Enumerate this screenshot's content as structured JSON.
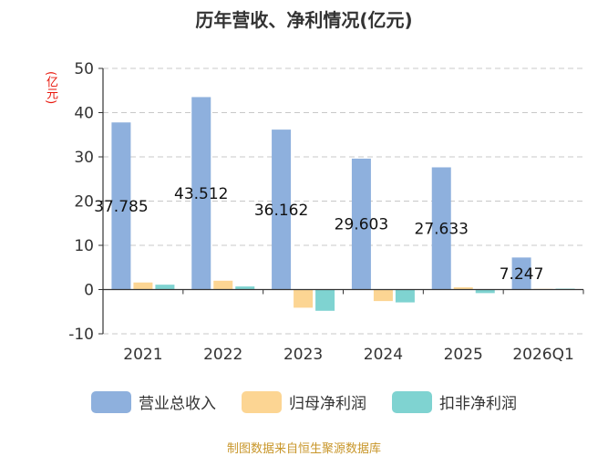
{
  "chart_data": {
    "type": "bar",
    "title": "历年营收、净利情况(亿元)",
    "yunit": "(亿元)",
    "categories": [
      "2021",
      "2022",
      "2023",
      "2024",
      "2025",
      "2026Q1"
    ],
    "ylim": [
      -10,
      50
    ],
    "yticks": [
      -10,
      0,
      10,
      20,
      30,
      40,
      50
    ],
    "grid": true,
    "legend_position": "bottom",
    "series": [
      {
        "name": "营业总收入",
        "color": "#8eb0dd",
        "values": [
          37.785,
          43.512,
          36.162,
          29.603,
          27.633,
          7.247
        ],
        "data_labels": [
          "37.785",
          "43.512",
          "36.162",
          "29.603",
          "27.633",
          "7.247"
        ]
      },
      {
        "name": "归母净利润",
        "color": "#fcd593",
        "values": [
          1.6,
          2.0,
          -4.1,
          -2.6,
          0.5,
          0.15
        ]
      },
      {
        "name": "扣非净利润",
        "color": "#7fd3d1",
        "values": [
          1.1,
          0.7,
          -4.8,
          -2.9,
          -0.8,
          0.2
        ]
      }
    ]
  },
  "source": "制图数据来自恒生聚源数据库"
}
